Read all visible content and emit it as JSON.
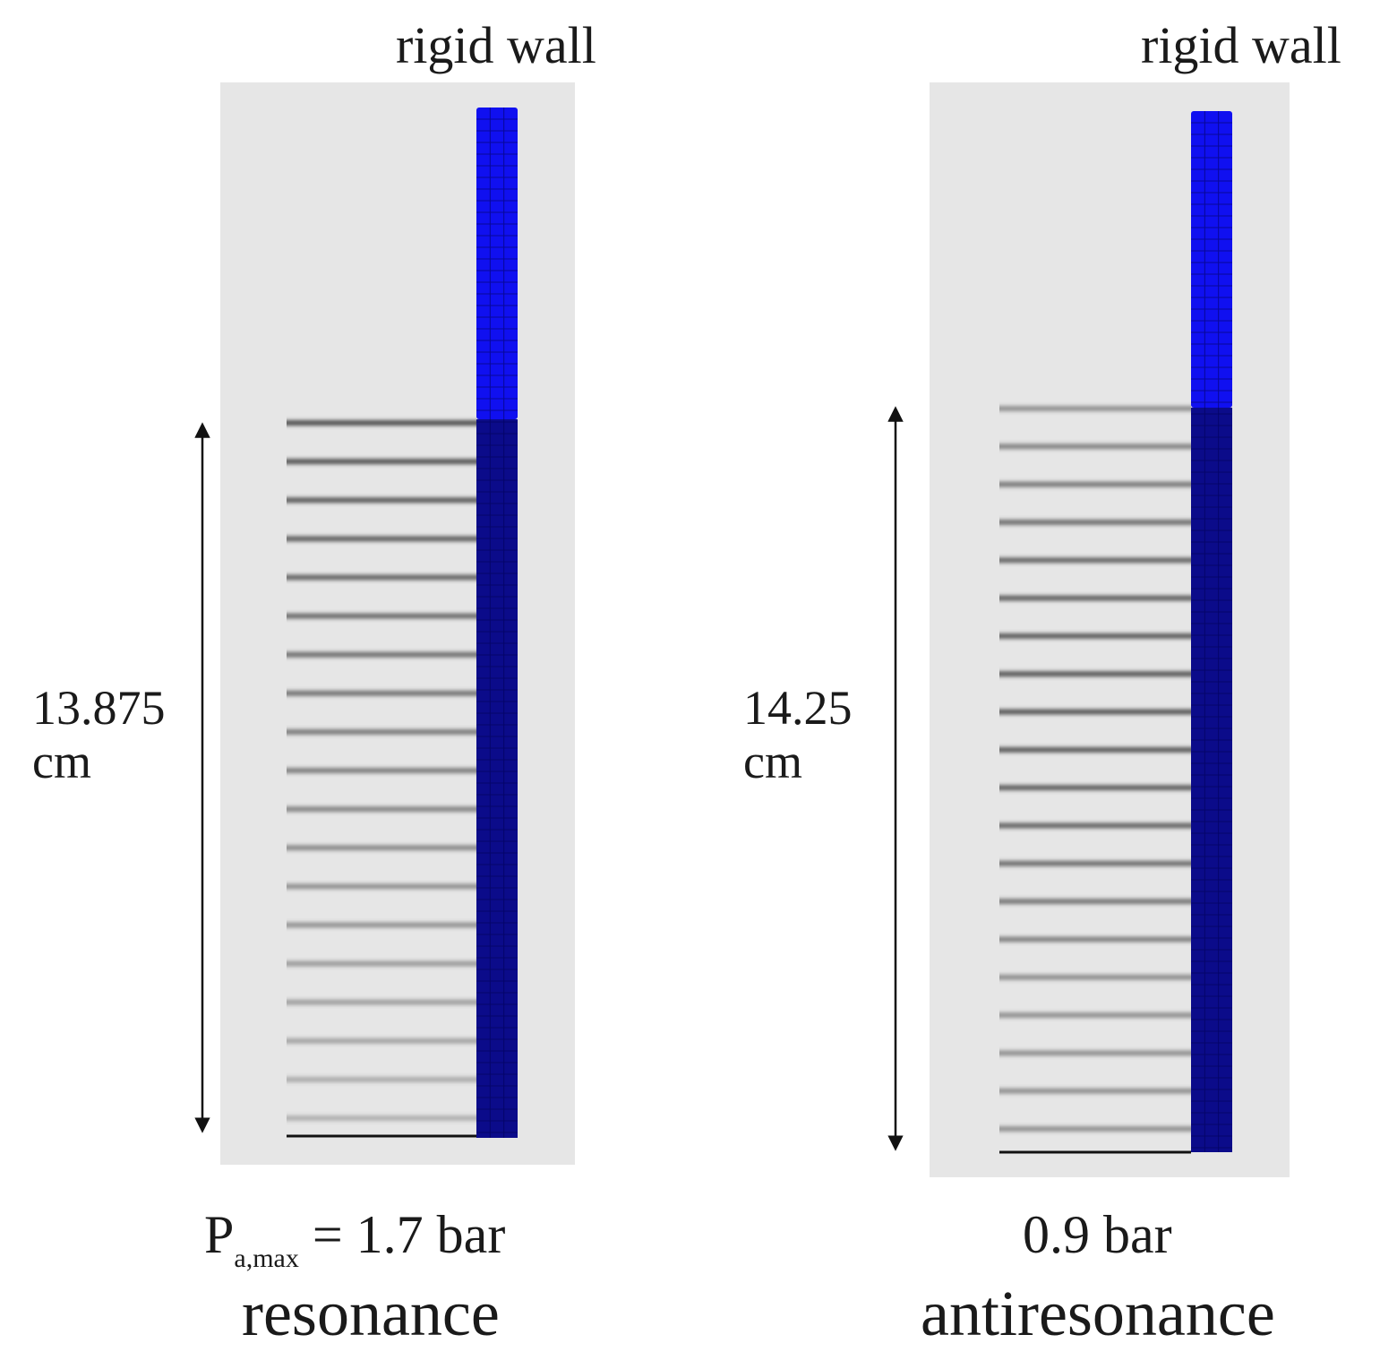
{
  "colors": {
    "background": "#ffffff",
    "panel": "#e6e6e6",
    "wall_upper": "#1010f0",
    "wall_lower": "#0b0b8a",
    "wall_grid": "#000050",
    "stripe": "#4a4a4a",
    "text": "#1a1a1a"
  },
  "panels": [
    {
      "wall_label": "rigid wall",
      "height_value": "13.875",
      "height_unit": "cm",
      "pressure_prefix": "P",
      "pressure_subscript": "a,max",
      "pressure_value": " = 1.7 bar",
      "regime": "resonance"
    },
    {
      "wall_label": "rigid wall",
      "height_value": "14.25",
      "height_unit": "cm",
      "pressure_prefix": "",
      "pressure_subscript": "",
      "pressure_value": "0.9 bar",
      "regime": "antiresonance"
    }
  ]
}
